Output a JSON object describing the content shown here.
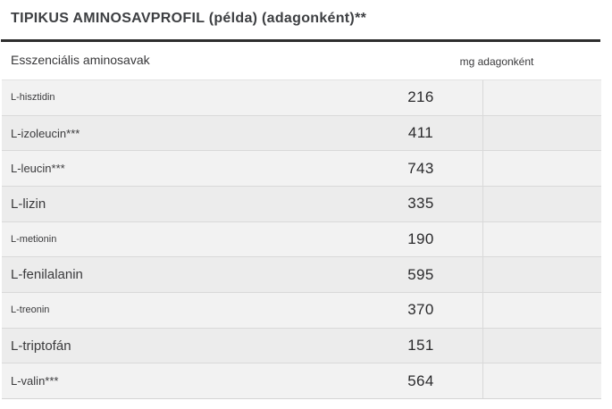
{
  "page": {
    "title": "TIPIKUS AMINOSAVPROFIL (példa) (adagonként)**"
  },
  "table": {
    "header": {
      "left": "Esszenciális aminosavak",
      "right": "mg adagonként"
    },
    "rows": [
      {
        "label": "L-hisztidin",
        "value": "216",
        "size": "small"
      },
      {
        "label": "L-izoleucin***",
        "value": "411",
        "size": "medium"
      },
      {
        "label": "L-leucin***",
        "value": "743",
        "size": "medium"
      },
      {
        "label": "L-lizin",
        "value": "335",
        "size": "large"
      },
      {
        "label": "L-metionin",
        "value": "190",
        "size": "small"
      },
      {
        "label": "L-fenilalanin",
        "value": "595",
        "size": "large"
      },
      {
        "label": "L-treonin",
        "value": "370",
        "size": "small"
      },
      {
        "label": "L-triptofán",
        "value": "151",
        "size": "large"
      },
      {
        "label": "L-valin***",
        "value": "564",
        "size": "medium"
      }
    ]
  },
  "theme": {
    "row_odd_bg": "#f2f2f2",
    "row_even_bg": "#ececec",
    "border_color": "#d9d9d9",
    "heavy_rule": "#2e2e2e",
    "title_color": "#3d3f42",
    "label_color": "#3b3b3d",
    "value_color": "#2a2a2c"
  }
}
